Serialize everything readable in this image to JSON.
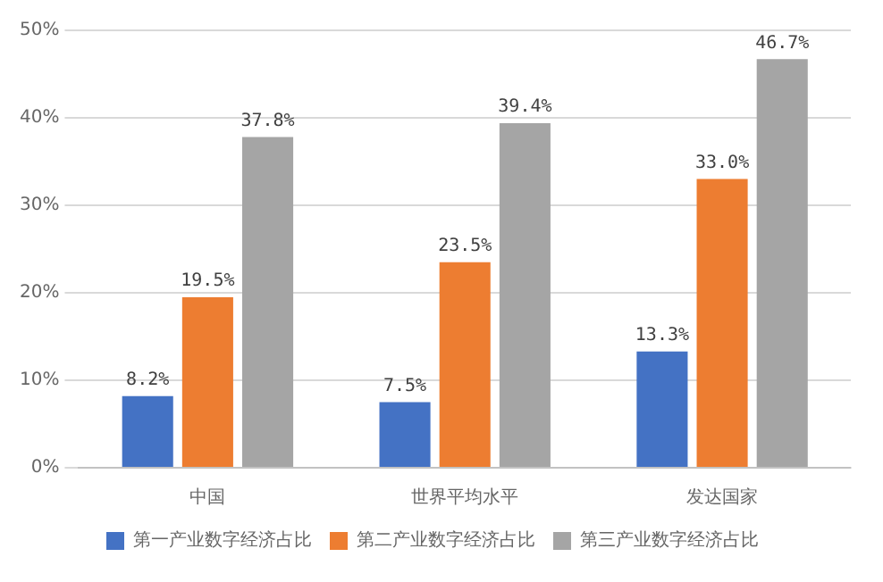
{
  "chart_data": {
    "type": "bar",
    "categories": [
      "中国",
      "世界平均水平",
      "发达国家"
    ],
    "series": [
      {
        "name": "第一产业数字经济占比",
        "color": "#4472c4",
        "values": [
          8.2,
          7.5,
          13.3
        ],
        "value_labels": [
          "8.2%",
          "7.5%",
          "13.3%"
        ]
      },
      {
        "name": "第二产业数字经济占比",
        "color": "#ed7d31",
        "values": [
          19.5,
          23.5,
          33.0
        ],
        "value_labels": [
          "19.5%",
          "23.5%",
          "33.0%"
        ]
      },
      {
        "name": "第三产业数字经济占比",
        "color": "#a5a5a5",
        "values": [
          37.8,
          39.4,
          46.7
        ],
        "value_labels": [
          "37.8%",
          "39.4%",
          "46.7%"
        ]
      }
    ],
    "ylim": [
      0,
      50
    ],
    "yticks": [
      {
        "value": 0,
        "label": "0%"
      },
      {
        "value": 10,
        "label": "10%"
      },
      {
        "value": 20,
        "label": "20%"
      },
      {
        "value": 30,
        "label": "30%"
      },
      {
        "value": 40,
        "label": "40%"
      },
      {
        "value": 50,
        "label": "50%"
      }
    ],
    "grid": "y",
    "legend": "bottom"
  }
}
